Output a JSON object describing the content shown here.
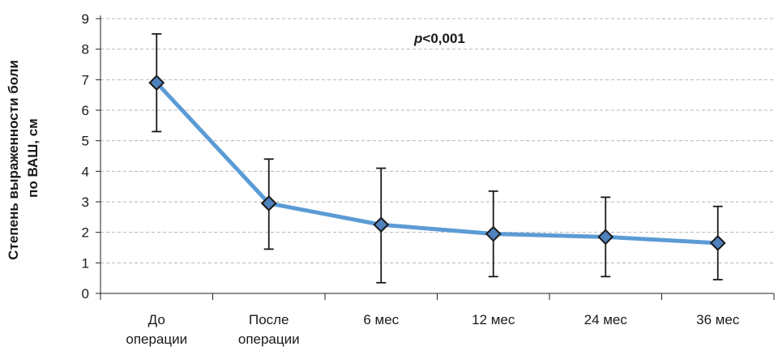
{
  "chart_data": {
    "type": "line",
    "title": "",
    "ylabel_lines": [
      "Степень выраженности боли",
      "по ВАШ, см"
    ],
    "xlabel": "",
    "ylim": [
      0,
      9
    ],
    "yticks": [
      "0",
      "1",
      "2",
      "3",
      "4",
      "5",
      "6",
      "7",
      "8",
      "9"
    ],
    "grid": true,
    "legend": "none",
    "categories": [
      [
        "До",
        "операции"
      ],
      [
        "После",
        "операции"
      ],
      [
        "6 мес"
      ],
      [
        "12 мес"
      ],
      [
        "24 мес"
      ],
      [
        "36 мес"
      ]
    ],
    "series": [
      {
        "values": [
          6.9,
          2.95,
          2.25,
          1.95,
          1.85,
          1.65
        ],
        "error_low": [
          5.3,
          1.45,
          0.35,
          0.55,
          0.55,
          0.45
        ],
        "error_high": [
          8.5,
          4.4,
          4.1,
          3.35,
          3.15,
          2.85
        ],
        "line_color": "#5b9bd5",
        "marker_color": "#4f81bd",
        "marker": "diamond"
      }
    ],
    "annotation": {
      "italic": "p",
      "text": "<0,001"
    }
  },
  "colors": {
    "axis": "#222222",
    "grid": "#b5b5b5",
    "error_bar": "#1a1a1a"
  }
}
